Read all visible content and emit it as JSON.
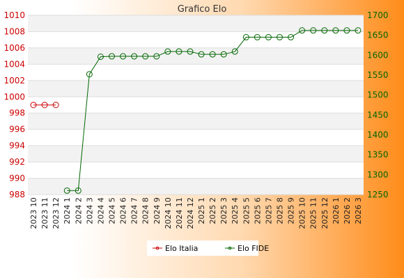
{
  "chart_data": {
    "type": "line",
    "title": "Grafico Elo",
    "categories": [
      "2023 10",
      "2023 11",
      "2023 12",
      "2024 1",
      "2024 2",
      "2024 3",
      "2024 4",
      "2024 5",
      "2024 6",
      "2024 7",
      "2024 8",
      "2024 9",
      "2024 10",
      "2024 11",
      "2024 12",
      "2025 1",
      "2025 2",
      "2025 3",
      "2025 4",
      "2025 5",
      "2025 6",
      "2025 7",
      "2025 8",
      "2025 9",
      "2025 10",
      "2025 11",
      "2025 12",
      "2026 1",
      "2026 2",
      "2026 3"
    ],
    "y_left": {
      "min": 988,
      "max": 1010,
      "ticks": [
        988,
        990,
        992,
        994,
        996,
        998,
        1000,
        1002,
        1004,
        1006,
        1008,
        1010
      ],
      "color": "#cc0000"
    },
    "y_right": {
      "min": 1250,
      "max": 1700,
      "ticks": [
        1250,
        1300,
        1350,
        1400,
        1450,
        1500,
        1550,
        1600,
        1650,
        1700
      ],
      "color": "#006600"
    },
    "grid": true,
    "legend_position": "bottom",
    "series": [
      {
        "name": "Elo Italia",
        "axis": "left",
        "color": "#cc0000",
        "values": [
          999,
          999,
          999,
          null,
          null,
          null,
          null,
          null,
          null,
          null,
          null,
          null,
          null,
          null,
          null,
          null,
          null,
          null,
          null,
          null,
          null,
          null,
          null,
          null,
          null,
          null,
          null,
          null,
          null,
          null
        ]
      },
      {
        "name": "Elo FIDE",
        "axis": "right",
        "color": "#006600",
        "values": [
          null,
          null,
          null,
          1260,
          1260,
          1552,
          1596,
          1597,
          1597,
          1597,
          1597,
          1597,
          1609,
          1609,
          1609,
          1602,
          1602,
          1602,
          1609,
          1645,
          1645,
          1645,
          1645,
          1645,
          1662,
          1662,
          1662,
          1662,
          1662,
          1662
        ]
      }
    ]
  }
}
